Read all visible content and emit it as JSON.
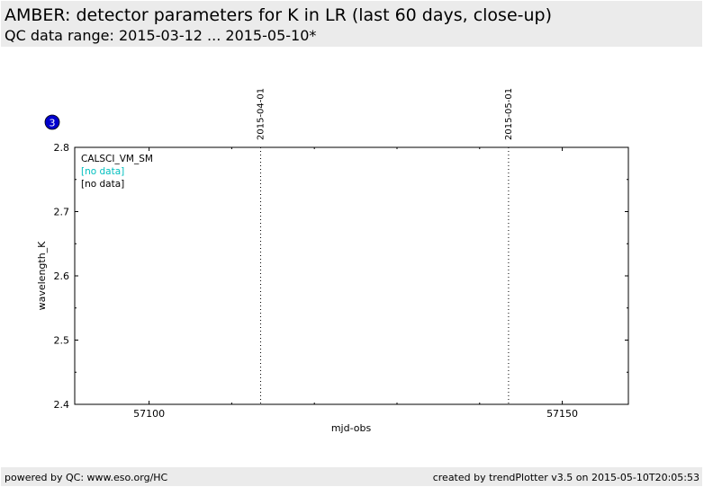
{
  "header": {
    "title": "AMBER: detector parameters for K in LR (last 60 days, close-up)",
    "subtitle": "QC data range: 2015-03-12 ... 2015-05-10*"
  },
  "badge": {
    "label": "3",
    "color": "#0000cc"
  },
  "footer": {
    "left": "powered by QC: www.eso.org/HC",
    "right": "created by trendPlotter v3.5 on 2015-05-10T20:05:53"
  },
  "chart_data": {
    "type": "scatter",
    "xlabel": "mjd-obs",
    "ylabel": "wavelength_K",
    "xlim": [
      57091,
      57158
    ],
    "ylim": [
      2.4,
      2.8
    ],
    "x_ticks": [
      57100,
      57150
    ],
    "y_ticks": [
      2.4,
      2.5,
      2.6,
      2.7,
      2.8
    ],
    "y_tick_labels": [
      "2.4",
      "2.5",
      "2.6",
      "2.7",
      "2.8"
    ],
    "date_markers": [
      {
        "x": 57113.5,
        "label": "2015-04-01"
      },
      {
        "x": 57143.5,
        "label": "2015-05-01"
      }
    ],
    "legend": [
      {
        "text": "CALSCI_VM_SM",
        "color": "#000000"
      },
      {
        "text": "[no data]",
        "color": "#00bfbf"
      },
      {
        "text": "[no data]",
        "color": "#000000"
      }
    ],
    "series": [],
    "grid": false
  }
}
